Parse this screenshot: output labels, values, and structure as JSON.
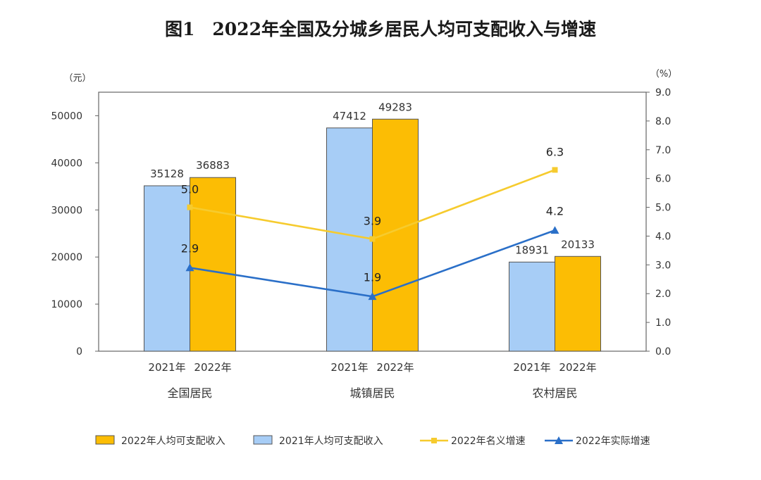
{
  "title": "图1　2022年全国及分城乡居民人均可支配收入与增速",
  "colors": {
    "bar2021": "#a7cdf6",
    "bar2022": "#fcbd04",
    "nominal": "#f6cb2e",
    "real": "#2a6fc8",
    "axis": "#666666",
    "text": "#333333"
  },
  "chart_data": {
    "type": "bar",
    "categories": [
      "全国居民",
      "城镇居民",
      "农村居民"
    ],
    "sublabels": [
      "2021年",
      "2022年"
    ],
    "left_unit": "（元）",
    "right_unit": "（%）",
    "left_ylim": [
      0,
      55000
    ],
    "right_ylim": [
      0,
      9.0
    ],
    "left_ticks": [
      "0",
      "10000",
      "20000",
      "30000",
      "40000",
      "50000"
    ],
    "right_ticks": [
      "0.0",
      "1.0",
      "2.0",
      "3.0",
      "4.0",
      "5.0",
      "6.0",
      "7.0",
      "8.0",
      "9.0"
    ],
    "series": [
      {
        "name": "2021年人均可支配收入",
        "type": "bar",
        "values": [
          35128,
          47412,
          18931
        ],
        "labels": [
          "35128",
          "47412",
          "18931"
        ]
      },
      {
        "name": "2022年人均可支配收入",
        "type": "bar",
        "values": [
          36883,
          49283,
          20133
        ],
        "labels": [
          "36883",
          "49283",
          "20133"
        ]
      },
      {
        "name": "2022年名义增速",
        "type": "line",
        "values": [
          5.0,
          3.9,
          6.3
        ],
        "labels": [
          "5.0",
          "3.9",
          "6.3"
        ]
      },
      {
        "name": "2022年实际增速",
        "type": "line",
        "values": [
          2.9,
          1.9,
          4.2
        ],
        "labels": [
          "2.9",
          "1.9",
          "4.2"
        ]
      }
    ],
    "legend": [
      "2022年人均可支配收入",
      "2021年人均可支配收入",
      "2022年名义增速",
      "2022年实际增速"
    ],
    "legend_position": "bottom",
    "grid": false
  }
}
